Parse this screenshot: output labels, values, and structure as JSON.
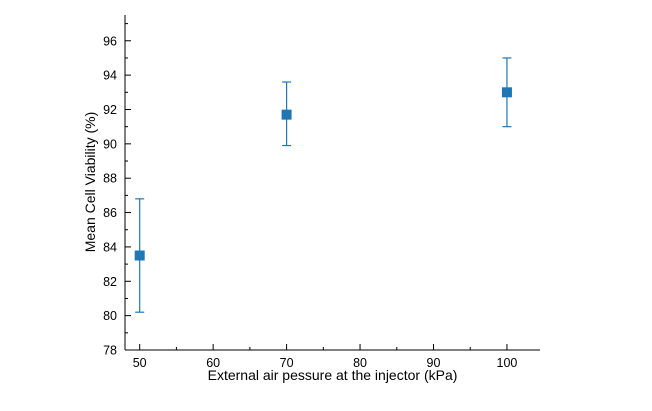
{
  "figure": {
    "background": "#ffffff",
    "axis_color": "#000000"
  },
  "chart_data": {
    "type": "scatter",
    "title": "",
    "xlabel": "External air pessure at the injector (kPa)",
    "ylabel": "Mean Cell Viability (%)",
    "xlim": [
      48,
      104.5
    ],
    "ylim": [
      78,
      97.5
    ],
    "xticks": [
      50,
      60,
      70,
      80,
      90,
      100
    ],
    "yticks": [
      78,
      80,
      82,
      84,
      86,
      88,
      90,
      92,
      94,
      96
    ],
    "x_minor_step": 5,
    "y_minor_step": 1,
    "grid": false,
    "legend": "none",
    "series": [
      {
        "name": "mean-cell-viability",
        "marker": "square",
        "marker_size": 9,
        "color": "#1f77b4",
        "points": [
          {
            "x": 50,
            "y": 83.5,
            "err_minus": 3.3,
            "err_plus": 3.3
          },
          {
            "x": 70,
            "y": 91.7,
            "err_minus": 1.8,
            "err_plus": 1.9
          },
          {
            "x": 100,
            "y": 93.0,
            "err_minus": 2.0,
            "err_plus": 2.0
          }
        ]
      }
    ]
  }
}
